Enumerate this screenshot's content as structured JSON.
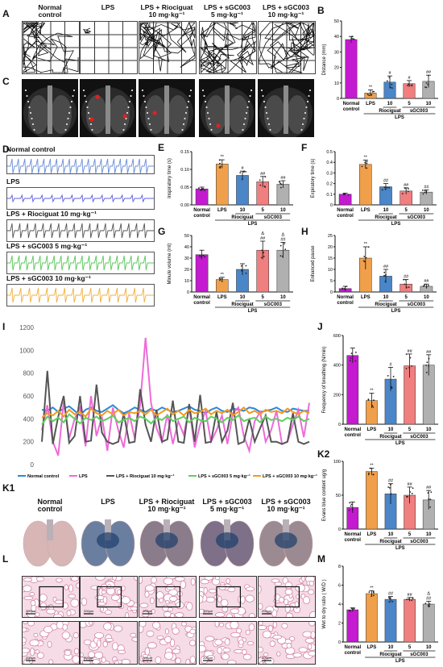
{
  "panels": {
    "A": "A",
    "B": "B",
    "C": "C",
    "D": "D",
    "E": "E",
    "F": "F",
    "G": "G",
    "H": "H",
    "I": "I",
    "J": "J",
    "K1": "K1",
    "K2": "K2",
    "L": "L",
    "M": "M"
  },
  "group_titles": [
    [
      "Normal",
      "control"
    ],
    [
      "LPS",
      ""
    ],
    [
      "LPS + Riociguat",
      "10 mg·kg⁻¹"
    ],
    [
      "LPS + sGC003",
      "5 mg·kg⁻¹"
    ],
    [
      "LPS + sGC003",
      "10 mg·kg⁻¹"
    ]
  ],
  "trace_labels": [
    "Normal control",
    "LPS",
    "LPS + Riociguat 10 mg·kg⁻¹",
    "LPS + sGC003 5 mg·kg⁻¹",
    "LPS + sGC003 10 mg·kg⁻¹"
  ],
  "scale_bar": "200μm",
  "bar_axis": {
    "cat_top": [
      "Normal",
      "LPS",
      "10",
      "5",
      "10"
    ],
    "cat_bottom": [
      "control"
    ],
    "riociguat": "Riociguat",
    "sgc003": "sGC003",
    "lps": "LPS"
  },
  "colors": {
    "normal": "#c41ad0",
    "lps": "#f0a04a",
    "riociguat": "#4a86c8",
    "sgc5": "#f07f7f",
    "sgc10": "#b0b0b0",
    "line_normal": "#2b88d8",
    "line_lps": "#ee6ad9",
    "line_rio": "#555555",
    "line_sgc5": "#5cd05c",
    "line_sgc10": "#f39a1e"
  },
  "chart_data": [
    {
      "panel": "B",
      "type": "bar",
      "ylabel": "Distance (mm)",
      "ylim": [
        0,
        50
      ],
      "yticks": [
        0,
        10,
        20,
        30,
        40,
        50
      ],
      "values": [
        38,
        3.5,
        10.5,
        9.5,
        11
      ],
      "errors": [
        2,
        2,
        4,
        2,
        4
      ],
      "marks": [
        "",
        "**",
        "#",
        "#",
        "##"
      ]
    },
    {
      "panel": "E",
      "type": "bar",
      "ylabel": "Inspiratory time (s)",
      "ylim": [
        0,
        0.15
      ],
      "yticks": [
        "0.00",
        "0.05",
        "0.10",
        "0.15"
      ],
      "values": [
        0.045,
        0.115,
        0.083,
        0.065,
        0.058
      ],
      "errors": [
        0.005,
        0.012,
        0.012,
        0.015,
        0.01
      ],
      "marks": [
        "",
        "**",
        "#",
        "##",
        "##"
      ]
    },
    {
      "panel": "F",
      "type": "bar",
      "ylabel": "Expiratory time (s)",
      "ylim": [
        0,
        0.5
      ],
      "yticks": [
        0.0,
        0.1,
        0.2,
        0.3,
        0.4,
        0.5
      ],
      "values": [
        0.1,
        0.38,
        0.17,
        0.13,
        0.12
      ],
      "errors": [
        0.01,
        0.04,
        0.03,
        0.03,
        0.02
      ],
      "marks": [
        "",
        "**",
        "##",
        "##",
        "##"
      ]
    },
    {
      "panel": "G",
      "type": "bar",
      "ylabel": "Minute volume (ml)",
      "ylim": [
        0,
        50
      ],
      "yticks": [
        0,
        10,
        20,
        30,
        40,
        50
      ],
      "values": [
        33,
        11,
        20,
        37,
        37
      ],
      "errors": [
        4,
        2,
        5,
        8,
        7
      ],
      "marks": [
        "",
        "**",
        "",
        "Δ ##",
        "Δ ##"
      ]
    },
    {
      "panel": "H",
      "type": "bar",
      "ylabel": "Enhanced pause",
      "ylim": [
        0,
        25
      ],
      "yticks": [
        0,
        5,
        10,
        15,
        20,
        25
      ],
      "values": [
        1.5,
        15,
        7,
        3.5,
        2.5
      ],
      "errors": [
        1,
        5,
        3,
        2,
        1
      ],
      "marks": [
        "",
        "**",
        "##",
        "##",
        "##"
      ]
    },
    {
      "panel": "J",
      "type": "bar",
      "ylabel": "Frequency of breathing (N/min)",
      "ylim": [
        0,
        600
      ],
      "yticks": [
        0,
        200,
        400,
        600
      ],
      "values": [
        465,
        160,
        305,
        395,
        400
      ],
      "errors": [
        50,
        50,
        80,
        80,
        70
      ],
      "marks": [
        "",
        "**",
        "#",
        "##",
        "##"
      ]
    },
    {
      "panel": "K2",
      "type": "bar",
      "ylabel": "Evans blue content ug/g",
      "ylim": [
        0,
        100
      ],
      "yticks": [
        0,
        50,
        100
      ],
      "values": [
        32,
        85,
        52,
        50,
        43
      ],
      "errors": [
        8,
        5,
        15,
        12,
        14
      ],
      "marks": [
        "",
        "**",
        "##",
        "##",
        "##"
      ]
    },
    {
      "panel": "M",
      "type": "bar",
      "ylabel": "Wet to dry ratio ( W/D )",
      "ylim": [
        0,
        8
      ],
      "yticks": [
        0,
        2,
        4,
        6,
        8
      ],
      "values": [
        3.4,
        5.1,
        4.5,
        4.5,
        4.0
      ],
      "errors": [
        0.2,
        0.3,
        0.3,
        0.2,
        0.3
      ],
      "marks": [
        "",
        "**",
        "##",
        "##",
        "Δ ##"
      ]
    },
    {
      "panel": "I",
      "type": "line",
      "ylim": [
        0,
        1200
      ],
      "yticks": [
        0,
        200,
        400,
        600,
        800,
        1000,
        1200
      ],
      "series": [
        {
          "name": "Normal control",
          "values": [
            480,
            470,
            500,
            460,
            490,
            510,
            470,
            430,
            480,
            500,
            470,
            460,
            490,
            520,
            480,
            450,
            470,
            500,
            480,
            460,
            490,
            470,
            500,
            480,
            460,
            470,
            490,
            510,
            480,
            470,
            450,
            480,
            500,
            470,
            460,
            490,
            480,
            470,
            500,
            490,
            460,
            470,
            480,
            500,
            470,
            460,
            490,
            480,
            470,
            470
          ]
        },
        {
          "name": "LPS",
          "values": [
            300,
            520,
            200,
            80,
            550,
            230,
            400,
            500,
            160,
            600,
            250,
            420,
            120,
            500,
            300,
            150,
            450,
            230,
            520,
            1110,
            540,
            320,
            200,
            440,
            180,
            380,
            260,
            500,
            150,
            350,
            470,
            200,
            300,
            430,
            180,
            450,
            500,
            250,
            120,
            380,
            460,
            200,
            300,
            470,
            180,
            200,
            350,
            480,
            240,
            540
          ]
        },
        {
          "name": "LPS + Riociguat 10 mg·kg⁻¹",
          "values": [
            200,
            820,
            180,
            420,
            600,
            190,
            250,
            600,
            200,
            210,
            700,
            280,
            200,
            180,
            200,
            450,
            190,
            200,
            660,
            350,
            200,
            480,
            200,
            220,
            560,
            200,
            190,
            530,
            200,
            610,
            190,
            200,
            460,
            200,
            300,
            540,
            180,
            200,
            400,
            200,
            320,
            430,
            200,
            200,
            180,
            200,
            450,
            200,
            180,
            200
          ]
        },
        {
          "name": "LPS + sGC003 5 mg·kg⁻¹",
          "values": [
            350,
            420,
            380,
            410,
            370,
            440,
            400,
            360,
            410,
            390,
            420,
            380,
            400,
            430,
            370,
            390,
            410,
            380,
            420,
            400,
            360,
            410,
            390,
            430,
            380,
            400,
            420,
            370,
            410,
            390,
            380,
            420,
            400,
            370,
            410,
            390,
            430,
            380,
            400,
            410,
            370,
            420,
            390,
            400,
            380,
            410,
            390,
            420,
            380,
            400
          ]
        },
        {
          "name": "LPS + sGC003 10 mg·kg⁻¹",
          "values": [
            410,
            450,
            430,
            470,
            420,
            480,
            440,
            460,
            420,
            490,
            450,
            430,
            470,
            440,
            480,
            430,
            460,
            450,
            470,
            440,
            480,
            430,
            460,
            490,
            440,
            470,
            430,
            480,
            450,
            460,
            490,
            440,
            470,
            450,
            480,
            430,
            460,
            500,
            450,
            470,
            440,
            480,
            460,
            470,
            450,
            490,
            460,
            440,
            470,
            450
          ]
        }
      ]
    }
  ]
}
